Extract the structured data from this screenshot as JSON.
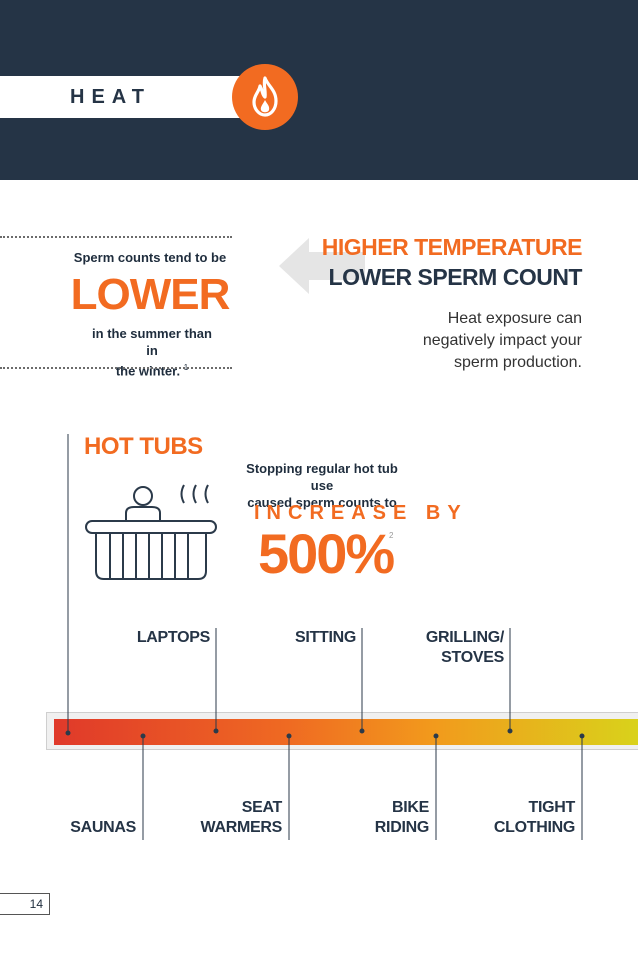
{
  "header": {
    "section_label": "HEAT",
    "icon": "flame-icon",
    "colors": {
      "navy": "#253446",
      "orange": "#f26b21"
    }
  },
  "lower_callout": {
    "intro": "Sperm counts tend to be",
    "big": "LOWER",
    "outro_line1": "in the summer than in",
    "outro_line2": "the winter.",
    "ref": "1"
  },
  "heat_info": {
    "title_line1": "HIGHER TEMPERATURE",
    "title_line2": "LOWER SPERM COUNT",
    "body_line1": "Heat exposure can",
    "body_line2": "negatively impact your",
    "body_line3": "sperm production."
  },
  "hot_tubs": {
    "title": "HOT TUBS",
    "stat_line1": "Stopping regular hot tub use",
    "stat_line2": "caused sperm counts to",
    "increase": "INCREASE BY",
    "percent": "500%",
    "ref": "2"
  },
  "timeline": {
    "above": [
      {
        "label_line1": "LAPTOPS",
        "label_line2": ""
      },
      {
        "label_line1": "SITTING",
        "label_line2": ""
      },
      {
        "label_line1": "GRILLING/",
        "label_line2": "STOVES"
      }
    ],
    "below": [
      {
        "label_line1": "SAUNAS",
        "label_line2": ""
      },
      {
        "label_line1": "SEAT",
        "label_line2": "WARMERS"
      },
      {
        "label_line1": "BIKE",
        "label_line2": "RIDING"
      },
      {
        "label_line1": "TIGHT",
        "label_line2": "CLOTHING"
      }
    ]
  },
  "footer": {
    "page_number": "14"
  }
}
